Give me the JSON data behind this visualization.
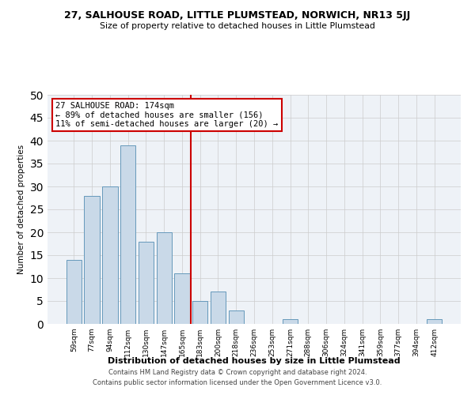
{
  "title": "27, SALHOUSE ROAD, LITTLE PLUMSTEAD, NORWICH, NR13 5JJ",
  "subtitle": "Size of property relative to detached houses in Little Plumstead",
  "xlabel": "Distribution of detached houses by size in Little Plumstead",
  "ylabel": "Number of detached properties",
  "categories": [
    "59sqm",
    "77sqm",
    "94sqm",
    "112sqm",
    "130sqm",
    "147sqm",
    "165sqm",
    "183sqm",
    "200sqm",
    "218sqm",
    "236sqm",
    "253sqm",
    "271sqm",
    "288sqm",
    "306sqm",
    "324sqm",
    "341sqm",
    "359sqm",
    "377sqm",
    "394sqm",
    "412sqm"
  ],
  "values": [
    14,
    28,
    30,
    39,
    18,
    20,
    11,
    5,
    7,
    3,
    0,
    0,
    1,
    0,
    0,
    0,
    0,
    0,
    0,
    0,
    1
  ],
  "bar_color": "#c9d9e8",
  "bar_edge_color": "#6699bb",
  "annotation_text": "27 SALHOUSE ROAD: 174sqm\n← 89% of detached houses are smaller (156)\n11% of semi-detached houses are larger (20) →",
  "annotation_box_color": "#ffffff",
  "annotation_box_edge": "#cc0000",
  "vline_color": "#cc0000",
  "vline_x_index": 6.5,
  "footer1": "Contains HM Land Registry data © Crown copyright and database right 2024.",
  "footer2": "Contains public sector information licensed under the Open Government Licence v3.0.",
  "ylim": [
    0,
    50
  ],
  "background_color": "#eef2f7"
}
